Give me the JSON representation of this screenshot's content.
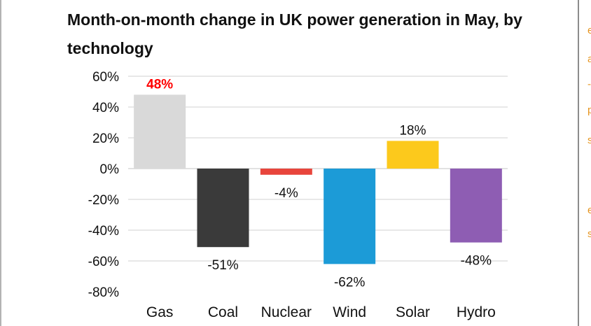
{
  "page": {
    "title": "Month-on-month change in UK power generation in May, by technology",
    "right_fragments": [
      "e",
      "a",
      "-",
      "p",
      "s",
      "e",
      "s"
    ]
  },
  "colors": {
    "Gas": "#d9d9d9",
    "Coal": "#3a3a3a",
    "Nuclear": "#e8453c",
    "Wind": "#1c9bd7",
    "Solar": "#fcc91c",
    "Hydro": "#8e5db3",
    "highlight_label": "#ff0000",
    "text": "#111111",
    "grid": "#d9d9d9"
  },
  "chart_data": {
    "type": "bar",
    "title": "Month-on-month change in UK power generation in May, by technology",
    "categories": [
      "Gas",
      "Coal",
      "Nuclear",
      "Wind",
      "Solar",
      "Hydro"
    ],
    "values": [
      48,
      -51,
      -4,
      -62,
      18,
      -48
    ],
    "data_labels": [
      "48%",
      "-51%",
      "-4%",
      "-62%",
      "18%",
      "-48%"
    ],
    "highlighted_category": "Gas",
    "ylim": [
      -80,
      60
    ],
    "yticks": [
      60,
      40,
      20,
      0,
      -20,
      -40,
      -60,
      -80
    ],
    "ytick_labels": [
      "60%",
      "40%",
      "20%",
      "0%",
      "-20%",
      "-40%",
      "-60%",
      "-80%"
    ],
    "xlabel": "",
    "ylabel": "",
    "grid": true,
    "legend": "none"
  }
}
